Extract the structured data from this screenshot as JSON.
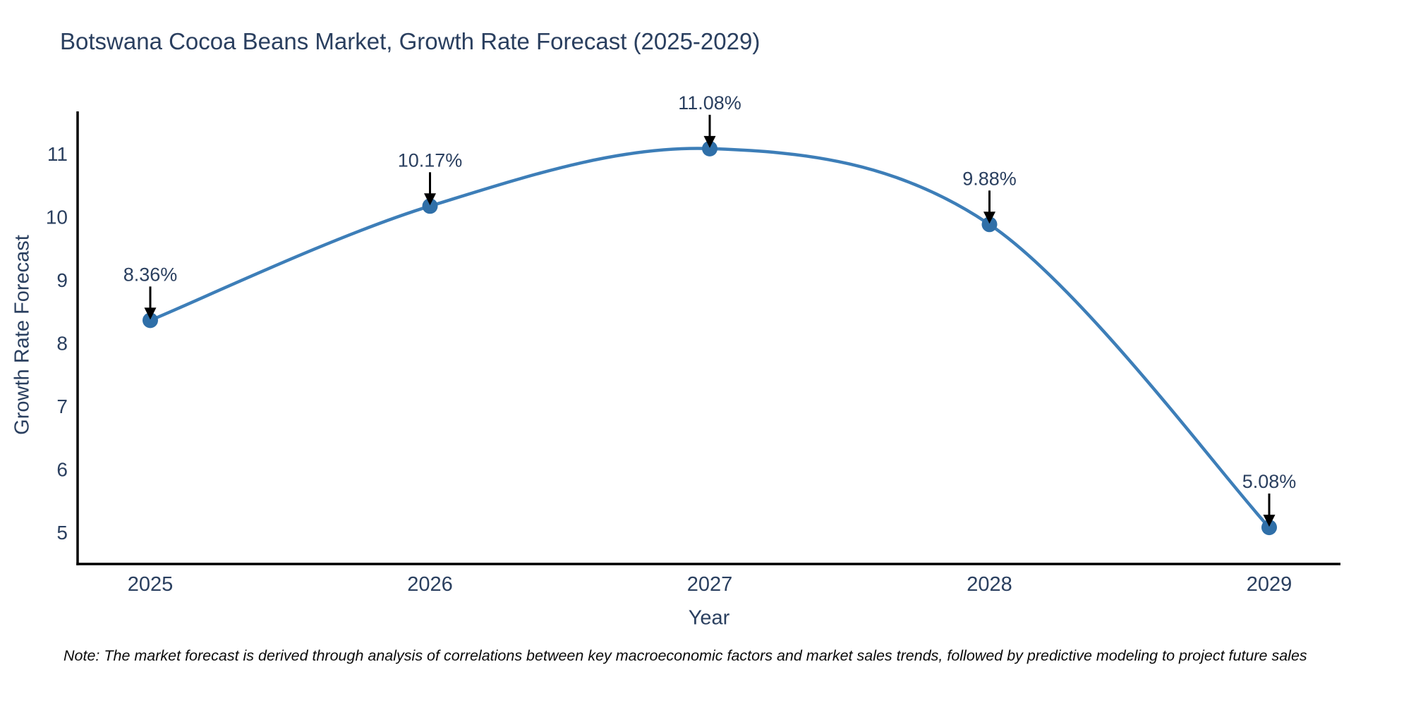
{
  "chart_data": {
    "type": "line",
    "title": "Botswana Cocoa Beans Market, Growth Rate Forecast (2025-2029)",
    "xlabel": "Year",
    "ylabel": "Growth Rate Forecast",
    "categories": [
      "2025",
      "2026",
      "2027",
      "2028",
      "2029"
    ],
    "series": [
      {
        "name": "Growth Rate Forecast",
        "values": [
          8.36,
          10.17,
          11.08,
          9.88,
          5.08
        ]
      }
    ],
    "point_labels": [
      "8.36%",
      "10.17%",
      "11.08%",
      "9.88%",
      "5.08%"
    ],
    "yticks": [
      5,
      6,
      7,
      8,
      9,
      10,
      11
    ],
    "ylim": [
      4.5,
      11.67
    ],
    "line_shape": "spline",
    "grid": false,
    "legend": "none",
    "colors": {
      "line": "#3d7eb8",
      "marker": "#2f6fa8",
      "axis": "#000000",
      "text": "#2a3f5f",
      "arrow": "#000000"
    }
  },
  "note": "Note: The market forecast is derived through analysis of correlations between key macroeconomic factors and market sales trends, followed by predictive modeling to project future sales"
}
